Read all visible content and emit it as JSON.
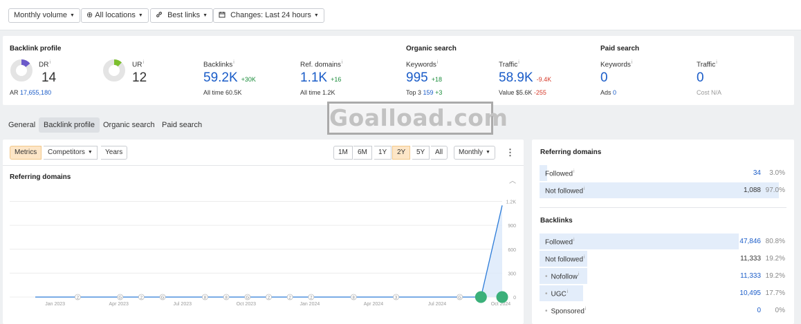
{
  "filters": {
    "volume": "Monthly volume",
    "locations": "All locations",
    "links": "Best links",
    "changes": "Changes: Last 24 hours"
  },
  "backlink_profile": {
    "title": "Backlink profile",
    "dr": {
      "label": "DR",
      "value": "14",
      "sub_label": "AR",
      "sub_value": "17,655,180",
      "ring_color": "#6b59c9",
      "ring_fill": 0.14
    },
    "ur": {
      "label": "UR",
      "value": "12",
      "ring_color": "#7cbf2e",
      "ring_fill": 0.12
    },
    "backlinks": {
      "label": "Backlinks",
      "value": "59.2K",
      "delta": "+30K",
      "sub": "All time 60.5K"
    },
    "ref_domains": {
      "label": "Ref. domains",
      "value": "1.1K",
      "delta": "+16",
      "sub": "All time 1.2K"
    }
  },
  "organic_search": {
    "title": "Organic search",
    "keywords": {
      "label": "Keywords",
      "value": "995",
      "delta": "+18",
      "sub_label": "Top 3",
      "sub_value": "159",
      "sub_delta": "+3"
    },
    "traffic": {
      "label": "Traffic",
      "value": "58.9K",
      "delta": "-9.4K",
      "sub_label": "Value",
      "sub_value": "$5.6K",
      "sub_delta": "-255"
    }
  },
  "paid_search": {
    "title": "Paid search",
    "keywords": {
      "label": "Keywords",
      "value": "0",
      "sub_label": "Ads",
      "sub_value": "0"
    },
    "traffic": {
      "label": "Traffic",
      "value": "0",
      "sub": "Cost N/A"
    }
  },
  "nav_tabs": [
    "General",
    "Backlink profile",
    "Organic search",
    "Paid search"
  ],
  "watermark": "Goalload.com",
  "chart_toolbar": {
    "left": [
      "Metrics",
      "Competitors",
      "Years"
    ],
    "ranges": [
      "1M",
      "6M",
      "1Y",
      "2Y",
      "5Y",
      "All"
    ],
    "active_range": "2Y",
    "interval": "Monthly"
  },
  "chart_panel_title": "Referring domains",
  "chart_data": {
    "type": "line",
    "title": "Referring domains",
    "x_tick_labels": [
      "Jan 2023",
      "Apr 2023",
      "Jul 2023",
      "Oct 2023",
      "Jan 2024",
      "Apr 2024",
      "Jul 2024",
      "Oct 2024"
    ],
    "y_tick_labels": [
      "0",
      "300",
      "600",
      "900",
      "1.2K"
    ],
    "ylim": [
      0,
      1300
    ],
    "x": [
      0,
      1,
      2,
      3,
      4,
      5,
      6,
      7,
      8,
      9,
      10,
      11,
      12,
      13,
      14,
      15,
      16,
      17,
      18,
      19,
      20,
      21,
      22
    ],
    "values": [
      0,
      0,
      0,
      0,
      0,
      0,
      0,
      0,
      0,
      0,
      0,
      0,
      0,
      0,
      0,
      0,
      0,
      0,
      0,
      0,
      0,
      0,
      1150
    ],
    "annotations": [
      {
        "x": 2,
        "label": "2"
      },
      {
        "x": 4,
        "label": "G"
      },
      {
        "x": 5,
        "label": "2"
      },
      {
        "x": 6,
        "label": "G"
      },
      {
        "x": 8,
        "label": "8"
      },
      {
        "x": 9,
        "label": "8"
      },
      {
        "x": 10,
        "label": "G"
      },
      {
        "x": 11,
        "label": "2"
      },
      {
        "x": 12,
        "label": "2"
      },
      {
        "x": 13,
        "label": "2"
      },
      {
        "x": 15,
        "label": "8"
      },
      {
        "x": 17,
        "label": "3"
      },
      {
        "x": 20,
        "label": "G"
      },
      {
        "x": 21,
        "label": "2"
      }
    ],
    "highlight_points": [
      21,
      22
    ],
    "grid": true,
    "color": "#2b7bd8",
    "highlight_color": "#3bb07a"
  },
  "referring_domains": {
    "title": "Referring domains",
    "rows": [
      {
        "label": "Followed",
        "value": "34",
        "pct": "3.0%",
        "fill": 0.03,
        "blue": true
      },
      {
        "label": "Not followed",
        "value": "1,088",
        "pct": "97.0%",
        "fill": 0.97,
        "blue": false
      }
    ]
  },
  "backlinks_breakdown": {
    "title": "Backlinks",
    "rows": [
      {
        "label": "Followed",
        "value": "47,846",
        "pct": "80.8%",
        "fill": 0.808,
        "blue": true
      },
      {
        "label": "Not followed",
        "value": "11,333",
        "pct": "19.2%",
        "fill": 0.192,
        "blue": false
      },
      {
        "label": "Nofollow",
        "value": "11,333",
        "pct": "19.2%",
        "fill": 0.192,
        "blue": true,
        "bullet": true
      },
      {
        "label": "UGC",
        "value": "10,495",
        "pct": "17.7%",
        "fill": 0.177,
        "blue": true,
        "bullet": true
      },
      {
        "label": "Sponsored",
        "value": "0",
        "pct": "0%",
        "fill": 0,
        "blue": true,
        "bullet": true
      }
    ]
  }
}
